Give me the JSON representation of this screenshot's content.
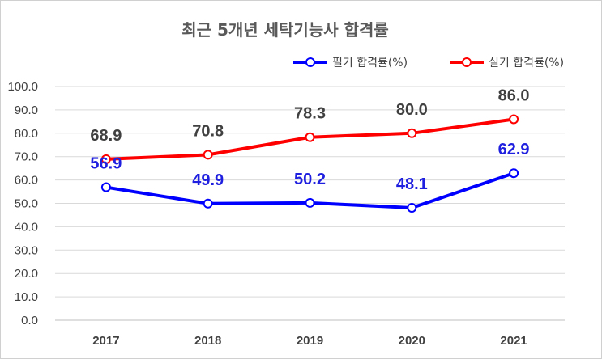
{
  "chart_data": {
    "type": "line",
    "title": "최근 5개년 세탁기능사 합격률",
    "categories": [
      "2017",
      "2018",
      "2019",
      "2020",
      "2021"
    ],
    "series": [
      {
        "name": "필기 합격률(%)",
        "values": [
          56.9,
          49.9,
          50.2,
          48.1,
          62.9
        ],
        "labels": [
          "56.9",
          "49.9",
          "50.2",
          "48.1",
          "62.9"
        ],
        "color": "#0000ff",
        "label_color": "#1f1fe0"
      },
      {
        "name": "실기 합격률(%)",
        "values": [
          68.9,
          70.8,
          78.3,
          80.0,
          86.0
        ],
        "labels": [
          "68.9",
          "70.8",
          "78.3",
          "80.0",
          "86.0"
        ],
        "color": "#ff0000",
        "label_color": "#404040"
      }
    ],
    "yticks": [
      "100.0",
      "90.0",
      "80.0",
      "70.0",
      "60.0",
      "50.0",
      "40.0",
      "30.0",
      "20.0",
      "10.0",
      "0.0"
    ],
    "ylim": [
      0,
      100
    ],
    "grid": true,
    "legend_position": "top-right"
  }
}
